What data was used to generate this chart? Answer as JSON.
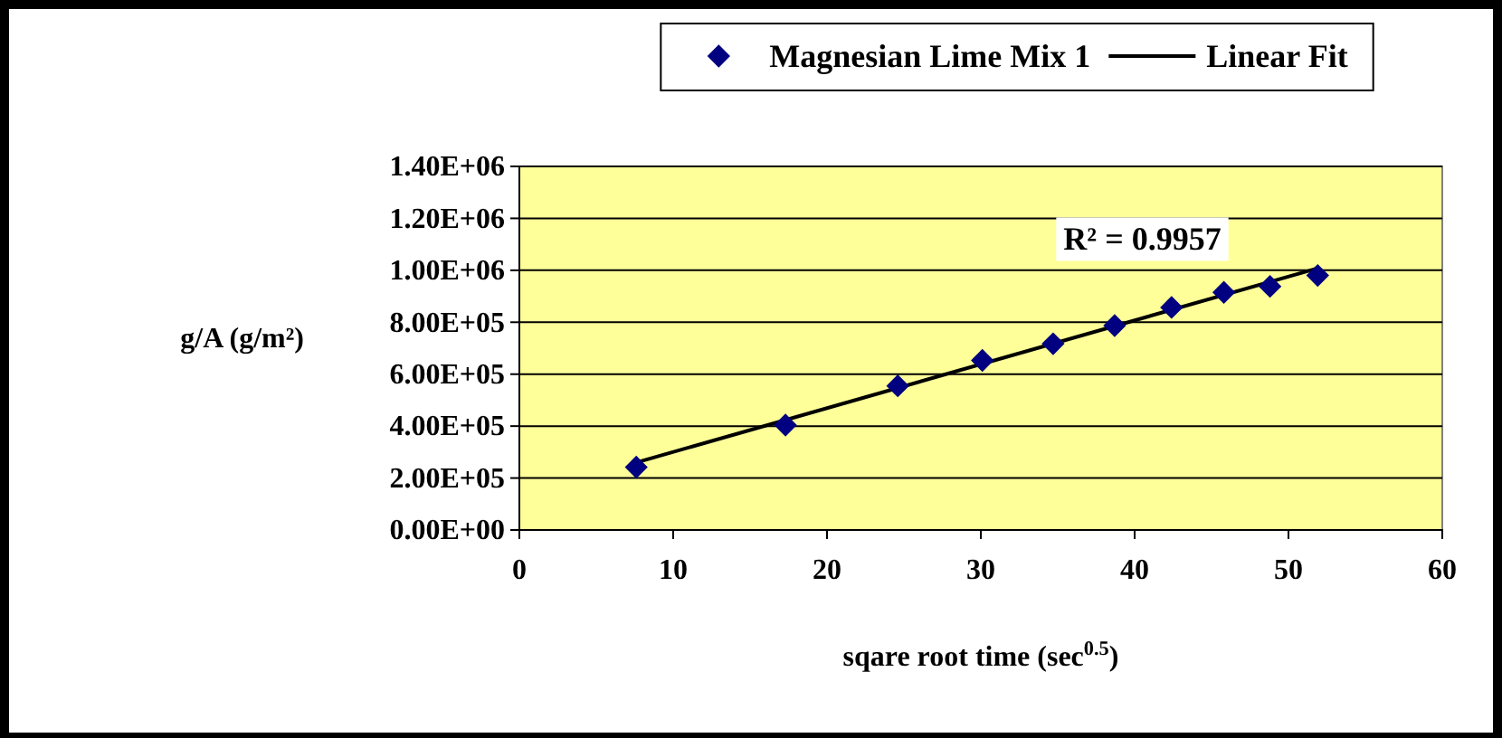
{
  "chart_data": {
    "type": "scatter",
    "xlabel": "sqare root time (sec$^{0.5}$)",
    "ylabel": "g/A (g/m²)",
    "xlim": [
      0,
      60
    ],
    "xticks": [
      0,
      10,
      20,
      30,
      40,
      50,
      60
    ],
    "ylim": [
      0,
      1400000
    ],
    "yticks": [
      {
        "value": 0,
        "label": "0.00E+00"
      },
      {
        "value": 200000,
        "label": "2.00E+05"
      },
      {
        "value": 400000,
        "label": "4.00E+05"
      },
      {
        "value": 600000,
        "label": "6.00E+05"
      },
      {
        "value": 800000,
        "label": "8.00E+05"
      },
      {
        "value": 1000000,
        "label": "1.00E+06"
      },
      {
        "value": 1200000,
        "label": "1.20E+06"
      },
      {
        "value": 1400000,
        "label": "1.40E+06"
      }
    ],
    "grid": "y",
    "legend": "top",
    "series": [
      {
        "name": "Magnesian Lime Mix 1",
        "color": "#000080",
        "marker": "diamond",
        "x": [
          7.6,
          17.3,
          24.6,
          30.1,
          34.7,
          38.7,
          42.4,
          45.8,
          48.8,
          51.9
        ],
        "values": [
          242000,
          404000,
          555000,
          653000,
          717000,
          787000,
          857000,
          915000,
          938000,
          980000
        ]
      },
      {
        "name": "Linear Fit",
        "color": "#000000",
        "type": "line",
        "marker": "none",
        "line_style": "solid",
        "x": [
          7.6,
          51.9
        ],
        "values": [
          260000,
          1008000
        ]
      }
    ],
    "annotations": [
      "R² = 0.9957"
    ]
  }
}
